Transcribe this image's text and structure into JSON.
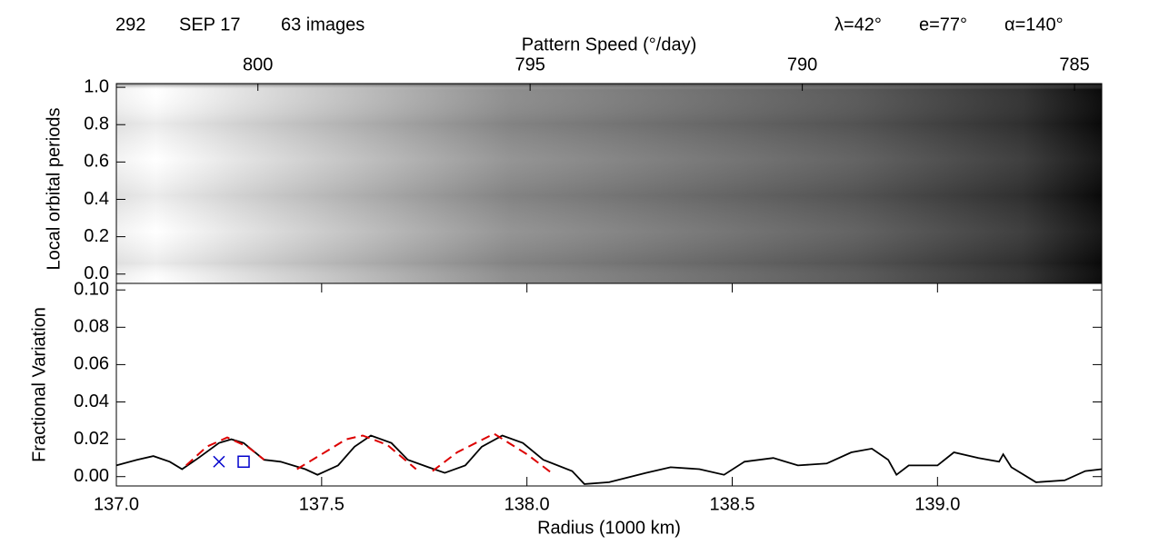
{
  "header": {
    "orbit": "292",
    "date": "SEP 17",
    "images": "63 images",
    "lambda": "λ=42°",
    "emission": "e=77°",
    "phase": "α=140°"
  },
  "chart_data": [
    {
      "type": "image",
      "x_label": "Pattern Speed (°/day)",
      "y_label": "Local orbital periods",
      "xlim": [
        802.6,
        784.5
      ],
      "xticks": [
        800,
        795,
        790,
        785
      ],
      "ylim": [
        -0.05,
        1.02
      ],
      "yticks": [
        {
          "value": 0,
          "label": "0.0"
        },
        {
          "value": 0.2,
          "label": "0.2"
        },
        {
          "value": 0.4,
          "label": "0.4"
        },
        {
          "value": 0.6,
          "label": "0.6"
        },
        {
          "value": 0.8,
          "label": "0.8"
        },
        {
          "value": 1,
          "label": "1.0"
        }
      ]
    },
    {
      "type": "line",
      "x_label": "Radius (1000 km)",
      "y_label": "Fractional Variation",
      "xlim": [
        137,
        139.4
      ],
      "xticks": [
        {
          "value": 137,
          "label": "137.0"
        },
        137.5,
        {
          "value": 138,
          "label": "138.0"
        },
        138.5,
        {
          "value": 139,
          "label": "139.0"
        }
      ],
      "ylim": [
        -0.005,
        0.1035
      ],
      "yticks": [
        {
          "value": 0,
          "label": "0.00"
        },
        {
          "value": 0.02,
          "label": "0.02"
        },
        {
          "value": 0.04,
          "label": "0.04"
        },
        {
          "value": 0.06,
          "label": "0.06"
        },
        {
          "value": 0.08,
          "label": "0.08"
        },
        {
          "value": 0.1,
          "label": "0.10"
        }
      ],
      "series": [
        {
          "color": "#000000",
          "style": "solid",
          "x": [
            137.0,
            137.05,
            137.09,
            137.13,
            137.16,
            137.2,
            137.25,
            137.28,
            137.31,
            137.36,
            137.4,
            137.46,
            137.49,
            137.54,
            137.58,
            137.62,
            137.67,
            137.71,
            137.76,
            137.8,
            137.85,
            137.89,
            137.94,
            137.99,
            138.04,
            138.11,
            138.14,
            138.2,
            138.29,
            138.35,
            138.42,
            138.48,
            138.53,
            138.6,
            138.66,
            138.73,
            138.79,
            138.84,
            138.88,
            138.9,
            138.93,
            139.0,
            139.04,
            139.1,
            139.15,
            139.16,
            139.18,
            139.24,
            139.31,
            139.36,
            139.4
          ],
          "values": [
            0.006,
            0.009,
            0.011,
            0.008,
            0.004,
            0.01,
            0.018,
            0.02,
            0.018,
            0.009,
            0.008,
            0.004,
            0.001,
            0.006,
            0.016,
            0.022,
            0.018,
            0.009,
            0.005,
            0.002,
            0.006,
            0.016,
            0.022,
            0.018,
            0.009,
            0.003,
            -0.004,
            -0.003,
            0.002,
            0.005,
            0.004,
            0.001,
            0.008,
            0.01,
            0.006,
            0.007,
            0.013,
            0.015,
            0.009,
            0.001,
            0.006,
            0.006,
            0.013,
            0.01,
            0.008,
            0.012,
            0.005,
            -0.003,
            -0.002,
            0.003,
            0.004
          ]
        },
        {
          "color": "#dd0000",
          "style": "dashed",
          "x": [
            137.17,
            137.22,
            137.27,
            137.32,
            137.36,
            null,
            137.44,
            137.5,
            137.56,
            137.6,
            137.66,
            137.73,
            null,
            137.77,
            137.83,
            137.92,
            138.0,
            138.06
          ],
          "values": [
            0.006,
            0.016,
            0.021,
            0.016,
            0.009,
            null,
            0.004,
            0.012,
            0.02,
            0.022,
            0.017,
            0.004,
            null,
            0.003,
            0.013,
            0.023,
            0.012,
            0.002
          ]
        },
        {
          "color": "#0000cc",
          "marker": "x",
          "x": [
            137.25
          ],
          "values": [
            0.008
          ]
        },
        {
          "color": "#0000cc",
          "marker": "square",
          "x": [
            137.31
          ],
          "values": [
            0.008
          ]
        }
      ]
    }
  ]
}
